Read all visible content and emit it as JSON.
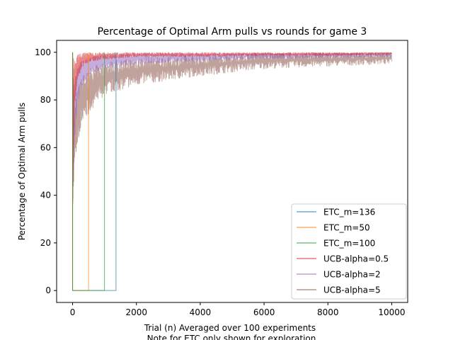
{
  "chart_data": {
    "type": "line",
    "title": "Percentage of Optimal Arm pulls vs rounds for game 3",
    "xlabel": "Trial (n) Averaged over 100 experiments",
    "xlabel_line2": "Note for ETC only shown for exploration",
    "ylabel": "Percentage of Optimal Arm pulls",
    "xlim": [
      -500,
      10500
    ],
    "ylim": [
      -5,
      105
    ],
    "x_ticks": [
      0,
      2000,
      4000,
      6000,
      8000,
      10000
    ],
    "y_ticks": [
      0,
      20,
      40,
      60,
      80,
      100
    ],
    "grid": false,
    "legend_position": "lower-right",
    "series": [
      {
        "name": "ETC_m=136",
        "color": "#1f77b4",
        "kind": "etc",
        "m": 136,
        "x": [
          0,
          0,
          1360,
          1360
        ],
        "y": [
          100,
          0,
          0,
          100
        ]
      },
      {
        "name": "ETC_m=50",
        "color": "#ff7f0e",
        "kind": "etc",
        "m": 50,
        "x": [
          0,
          0,
          500,
          500
        ],
        "y": [
          100,
          0,
          0,
          100
        ]
      },
      {
        "name": "ETC_m=100",
        "color": "#2ca02c",
        "kind": "etc",
        "m": 100,
        "x": [
          0,
          0,
          1000,
          1000
        ],
        "y": [
          100,
          0,
          0,
          100
        ]
      },
      {
        "name": "UCB-alpha=0.5",
        "color": "#d62728",
        "kind": "ucb",
        "x": [
          0,
          50,
          150,
          300,
          600,
          1000,
          2000,
          4000,
          6000,
          8000,
          10000
        ],
        "y_low": [
          30,
          75,
          88,
          94,
          96,
          97,
          98,
          98,
          98.5,
          98.5,
          99
        ],
        "y_high": [
          100,
          96,
          99,
          100,
          100,
          100,
          100,
          100,
          100,
          100,
          100
        ]
      },
      {
        "name": "UCB-alpha=2",
        "color": "#9467bd",
        "kind": "ucb",
        "x": [
          0,
          50,
          150,
          300,
          600,
          1000,
          2000,
          4000,
          6000,
          8000,
          10000
        ],
        "y_low": [
          30,
          60,
          78,
          86,
          91,
          93,
          95,
          96,
          97,
          97.5,
          98
        ],
        "y_high": [
          100,
          88,
          94,
          97,
          98.5,
          99,
          100,
          100,
          100,
          100,
          100
        ]
      },
      {
        "name": "UCB-alpha=5",
        "color": "#8c564b",
        "kind": "ucb",
        "x": [
          0,
          50,
          150,
          300,
          600,
          1000,
          2000,
          4000,
          6000,
          8000,
          10000
        ],
        "y_low": [
          30,
          50,
          62,
          70,
          76,
          82,
          86,
          90,
          93,
          94,
          95
        ],
        "y_high": [
          100,
          78,
          85,
          90,
          94,
          96,
          98,
          99,
          100,
          100,
          100
        ]
      }
    ]
  }
}
